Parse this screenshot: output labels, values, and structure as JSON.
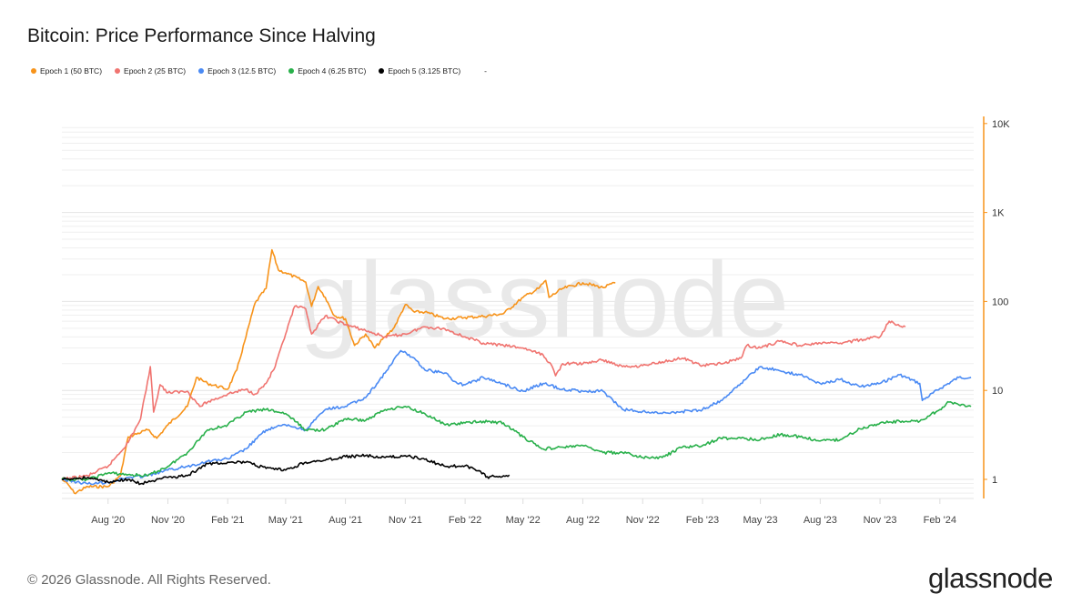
{
  "title": "Bitcoin: Price Performance Since Halving",
  "footer": "© 2026 Glassnode. All Rights Reserved.",
  "logo_text": "glassnode",
  "watermark_text": "glassnode",
  "legend": [
    {
      "label": "Epoch 1 (50 BTC)",
      "color": "#f7931a"
    },
    {
      "label": "Epoch 2 (25 BTC)",
      "color": "#f07470"
    },
    {
      "label": "Epoch 3 (12.5 BTC)",
      "color": "#4a8af4"
    },
    {
      "label": "Epoch 4 (6.25 BTC)",
      "color": "#28b04a"
    },
    {
      "label": "Epoch 5 (3.125 BTC)",
      "color": "#000000"
    },
    {
      "label": "-",
      "color": ""
    }
  ],
  "chart_data": {
    "type": "line",
    "title": "Bitcoin: Price Performance Since Halving",
    "xlabel": "",
    "ylabel": "",
    "x_type": "date",
    "xlim": [
      "2020-05-22",
      "2024-03-24"
    ],
    "y_scale": "log",
    "ylim": [
      0.6,
      10000
    ],
    "y_axis_position": "right",
    "y_axis_color": "#f7931a",
    "grid": true,
    "legend_position": "top-left",
    "x_ticks": [
      "Aug '20",
      "Nov '20",
      "Feb '21",
      "May '21",
      "Aug '21",
      "Nov '21",
      "Feb '22",
      "May '22",
      "Aug '22",
      "Nov '22",
      "Feb '23",
      "May '23",
      "Aug '23",
      "Nov '23",
      "Feb '24"
    ],
    "x_tick_dates": [
      "2020-08-01",
      "2020-11-01",
      "2021-02-01",
      "2021-05-01",
      "2021-08-01",
      "2021-11-01",
      "2022-02-01",
      "2022-05-01",
      "2022-08-01",
      "2022-11-01",
      "2023-02-01",
      "2023-05-01",
      "2023-08-01",
      "2023-11-01",
      "2024-02-01"
    ],
    "y_ticks": [
      {
        "value": 1,
        "label": "1"
      },
      {
        "value": 10,
        "label": "10"
      },
      {
        "value": 100,
        "label": "100"
      },
      {
        "value": 1000,
        "label": "1K"
      },
      {
        "value": 10000,
        "label": "10K"
      }
    ],
    "series": [
      {
        "name": "Epoch 1 (50 BTC)",
        "color": "#f7931a",
        "points": [
          [
            "2020-05-22",
            1
          ],
          [
            "2020-06-01",
            0.87
          ],
          [
            "2020-06-10",
            0.7
          ],
          [
            "2020-07-01",
            0.83
          ],
          [
            "2020-08-01",
            0.83
          ],
          [
            "2020-08-20",
            1.1
          ],
          [
            "2020-09-01",
            3.0
          ],
          [
            "2020-10-01",
            3.6
          ],
          [
            "2020-10-15",
            2.9
          ],
          [
            "2020-11-01",
            4.1
          ],
          [
            "2020-12-01",
            6.6
          ],
          [
            "2020-12-15",
            14
          ],
          [
            "2021-01-01",
            12
          ],
          [
            "2021-02-01",
            10.3
          ],
          [
            "2021-02-15",
            17
          ],
          [
            "2021-03-01",
            40
          ],
          [
            "2021-03-15",
            96
          ],
          [
            "2021-04-01",
            140
          ],
          [
            "2021-04-10",
            380
          ],
          [
            "2021-04-20",
            225
          ],
          [
            "2021-05-01",
            210
          ],
          [
            "2021-06-01",
            165
          ],
          [
            "2021-06-10",
            88
          ],
          [
            "2021-06-20",
            147
          ],
          [
            "2021-07-01",
            111
          ],
          [
            "2021-07-15",
            69
          ],
          [
            "2021-08-01",
            64
          ],
          [
            "2021-08-15",
            32
          ],
          [
            "2021-09-01",
            43
          ],
          [
            "2021-09-15",
            30
          ],
          [
            "2021-10-01",
            40
          ],
          [
            "2021-10-15",
            51
          ],
          [
            "2021-11-01",
            92
          ],
          [
            "2021-11-15",
            76
          ],
          [
            "2021-12-01",
            76
          ],
          [
            "2022-01-01",
            64
          ],
          [
            "2022-02-01",
            66
          ],
          [
            "2022-03-01",
            68
          ],
          [
            "2022-04-01",
            73
          ],
          [
            "2022-05-01",
            111
          ],
          [
            "2022-05-25",
            140
          ],
          [
            "2022-06-05",
            172
          ],
          [
            "2022-06-10",
            111
          ],
          [
            "2022-07-01",
            140
          ],
          [
            "2022-08-01",
            162
          ],
          [
            "2022-09-01",
            143
          ],
          [
            "2022-09-20",
            162
          ]
        ]
      },
      {
        "name": "Epoch 2 (25 BTC)",
        "color": "#f07470",
        "points": [
          [
            "2020-05-22",
            1
          ],
          [
            "2020-07-01",
            1.1
          ],
          [
            "2020-08-01",
            1.4
          ],
          [
            "2020-09-01",
            2.6
          ],
          [
            "2020-09-20",
            4.8
          ],
          [
            "2020-10-05",
            18.5
          ],
          [
            "2020-10-10",
            5.7
          ],
          [
            "2020-10-20",
            11.6
          ],
          [
            "2020-11-01",
            9.4
          ],
          [
            "2020-12-01",
            9.8
          ],
          [
            "2020-12-20",
            6.6
          ],
          [
            "2021-01-01",
            7.4
          ],
          [
            "2021-02-01",
            9.1
          ],
          [
            "2021-03-01",
            10.3
          ],
          [
            "2021-03-15",
            9.1
          ],
          [
            "2021-04-01",
            12
          ],
          [
            "2021-04-15",
            18.5
          ],
          [
            "2021-05-01",
            43
          ],
          [
            "2021-05-15",
            88
          ],
          [
            "2021-06-01",
            82
          ],
          [
            "2021-06-10",
            43
          ],
          [
            "2021-07-01",
            69
          ],
          [
            "2021-08-01",
            55
          ],
          [
            "2021-09-01",
            47
          ],
          [
            "2021-10-01",
            40
          ],
          [
            "2021-11-01",
            43
          ],
          [
            "2021-12-01",
            52
          ],
          [
            "2022-01-01",
            49
          ],
          [
            "2022-02-01",
            40
          ],
          [
            "2022-03-01",
            34
          ],
          [
            "2022-04-01",
            32
          ],
          [
            "2022-05-01",
            30
          ],
          [
            "2022-06-01",
            25
          ],
          [
            "2022-06-15",
            18.5
          ],
          [
            "2022-06-20",
            14.6
          ],
          [
            "2022-07-01",
            20
          ],
          [
            "2022-08-01",
            20
          ],
          [
            "2022-09-01",
            22
          ],
          [
            "2022-10-01",
            18.5
          ],
          [
            "2022-11-01",
            19
          ],
          [
            "2022-12-01",
            21
          ],
          [
            "2023-01-01",
            23
          ],
          [
            "2023-02-01",
            19
          ],
          [
            "2023-03-01",
            20
          ],
          [
            "2023-04-01",
            23
          ],
          [
            "2023-04-10",
            32
          ],
          [
            "2023-05-01",
            30
          ],
          [
            "2023-06-01",
            36
          ],
          [
            "2023-07-01",
            32
          ],
          [
            "2023-08-01",
            34
          ],
          [
            "2023-09-01",
            34
          ],
          [
            "2023-10-01",
            37
          ],
          [
            "2023-11-01",
            40
          ],
          [
            "2023-11-15",
            60
          ],
          [
            "2023-12-01",
            53
          ],
          [
            "2023-12-10",
            52
          ]
        ]
      },
      {
        "name": "Epoch 3 (12.5 BTC)",
        "color": "#4a8af4",
        "points": [
          [
            "2020-05-22",
            1
          ],
          [
            "2020-07-01",
            0.89
          ],
          [
            "2020-08-01",
            0.93
          ],
          [
            "2020-09-01",
            1.05
          ],
          [
            "2020-10-01",
            1.1
          ],
          [
            "2020-11-01",
            1.27
          ],
          [
            "2020-12-01",
            1.4
          ],
          [
            "2021-01-01",
            1.6
          ],
          [
            "2021-02-01",
            1.7
          ],
          [
            "2021-03-01",
            2.2
          ],
          [
            "2021-04-01",
            3.6
          ],
          [
            "2021-05-01",
            4.1
          ],
          [
            "2021-06-01",
            3.6
          ],
          [
            "2021-07-01",
            6.1
          ],
          [
            "2021-08-01",
            6.6
          ],
          [
            "2021-09-01",
            8.3
          ],
          [
            "2021-10-01",
            15.7
          ],
          [
            "2021-10-25",
            28
          ],
          [
            "2021-11-15",
            23
          ],
          [
            "2021-12-01",
            17
          ],
          [
            "2022-01-01",
            15.7
          ],
          [
            "2022-01-20",
            12
          ],
          [
            "2022-02-01",
            11.6
          ],
          [
            "2022-03-01",
            14
          ],
          [
            "2022-04-01",
            11.8
          ],
          [
            "2022-05-01",
            9.8
          ],
          [
            "2022-06-01",
            12
          ],
          [
            "2022-07-01",
            10.3
          ],
          [
            "2022-08-01",
            9.8
          ],
          [
            "2022-09-01",
            9.8
          ],
          [
            "2022-10-01",
            6.1
          ],
          [
            "2022-11-01",
            5.8
          ],
          [
            "2022-12-01",
            5.5
          ],
          [
            "2023-01-01",
            5.8
          ],
          [
            "2023-02-01",
            6.1
          ],
          [
            "2023-03-01",
            7.7
          ],
          [
            "2023-04-01",
            12
          ],
          [
            "2023-05-01",
            18.5
          ],
          [
            "2023-06-01",
            16.5
          ],
          [
            "2023-07-01",
            15
          ],
          [
            "2023-08-01",
            12
          ],
          [
            "2023-09-01",
            13.3
          ],
          [
            "2023-10-01",
            11
          ],
          [
            "2023-11-01",
            12
          ],
          [
            "2023-12-01",
            15
          ],
          [
            "2024-01-01",
            12
          ],
          [
            "2024-01-05",
            7.7
          ],
          [
            "2024-02-01",
            10.5
          ],
          [
            "2024-03-01",
            14
          ],
          [
            "2024-03-20",
            14
          ]
        ]
      },
      {
        "name": "Epoch 4 (6.25 BTC)",
        "color": "#28b04a",
        "points": [
          [
            "2020-05-22",
            1
          ],
          [
            "2020-07-01",
            1
          ],
          [
            "2020-08-01",
            1.18
          ],
          [
            "2020-09-01",
            1.13
          ],
          [
            "2020-10-01",
            1.1
          ],
          [
            "2020-11-01",
            1.4
          ],
          [
            "2020-12-01",
            2.0
          ],
          [
            "2021-01-01",
            3.6
          ],
          [
            "2021-02-01",
            4.1
          ],
          [
            "2021-03-01",
            5.7
          ],
          [
            "2021-04-01",
            6.1
          ],
          [
            "2021-05-01",
            5.5
          ],
          [
            "2021-06-01",
            3.6
          ],
          [
            "2021-07-01",
            3.6
          ],
          [
            "2021-08-01",
            4.8
          ],
          [
            "2021-09-01",
            4.6
          ],
          [
            "2021-10-01",
            6.1
          ],
          [
            "2021-11-01",
            6.6
          ],
          [
            "2021-12-01",
            5.5
          ],
          [
            "2022-01-01",
            4.1
          ],
          [
            "2022-02-01",
            4.3
          ],
          [
            "2022-03-01",
            4.5
          ],
          [
            "2022-04-01",
            4.3
          ],
          [
            "2022-05-01",
            3.0
          ],
          [
            "2022-06-01",
            2.2
          ],
          [
            "2022-07-01",
            2.3
          ],
          [
            "2022-08-01",
            2.4
          ],
          [
            "2022-09-01",
            2.0
          ],
          [
            "2022-10-01",
            2.0
          ],
          [
            "2022-11-01",
            1.76
          ],
          [
            "2022-12-01",
            1.76
          ],
          [
            "2023-01-01",
            2.3
          ],
          [
            "2023-02-01",
            2.4
          ],
          [
            "2023-03-01",
            2.9
          ],
          [
            "2023-04-01",
            2.9
          ],
          [
            "2023-05-01",
            2.8
          ],
          [
            "2023-06-01",
            3.2
          ],
          [
            "2023-07-01",
            3.0
          ],
          [
            "2023-08-01",
            2.7
          ],
          [
            "2023-09-01",
            2.8
          ],
          [
            "2023-10-01",
            3.7
          ],
          [
            "2023-11-01",
            4.3
          ],
          [
            "2023-12-01",
            4.5
          ],
          [
            "2024-01-01",
            4.5
          ],
          [
            "2024-02-01",
            6.1
          ],
          [
            "2024-02-15",
            7.4
          ],
          [
            "2024-03-01",
            6.9
          ],
          [
            "2024-03-20",
            6.6
          ]
        ]
      },
      {
        "name": "Epoch 5 (3.125 BTC)",
        "color": "#000000",
        "points": [
          [
            "2020-05-22",
            1
          ],
          [
            "2020-07-01",
            1.05
          ],
          [
            "2020-08-01",
            0.93
          ],
          [
            "2020-09-01",
            1.0
          ],
          [
            "2020-09-20",
            0.89
          ],
          [
            "2020-10-01",
            0.93
          ],
          [
            "2020-11-01",
            1.05
          ],
          [
            "2020-12-01",
            1.1
          ],
          [
            "2021-01-01",
            1.5
          ],
          [
            "2021-02-01",
            1.56
          ],
          [
            "2021-03-01",
            1.56
          ],
          [
            "2021-04-01",
            1.33
          ],
          [
            "2021-05-01",
            1.27
          ],
          [
            "2021-06-01",
            1.56
          ],
          [
            "2021-07-01",
            1.64
          ],
          [
            "2021-08-01",
            1.8
          ],
          [
            "2021-09-01",
            1.85
          ],
          [
            "2021-10-01",
            1.76
          ],
          [
            "2021-11-01",
            1.85
          ],
          [
            "2021-12-01",
            1.68
          ],
          [
            "2022-01-01",
            1.4
          ],
          [
            "2022-02-01",
            1.42
          ],
          [
            "2022-03-01",
            1.18
          ],
          [
            "2022-03-05",
            1.06
          ],
          [
            "2022-04-01",
            1.1
          ],
          [
            "2022-04-10",
            1.12
          ]
        ]
      }
    ]
  }
}
